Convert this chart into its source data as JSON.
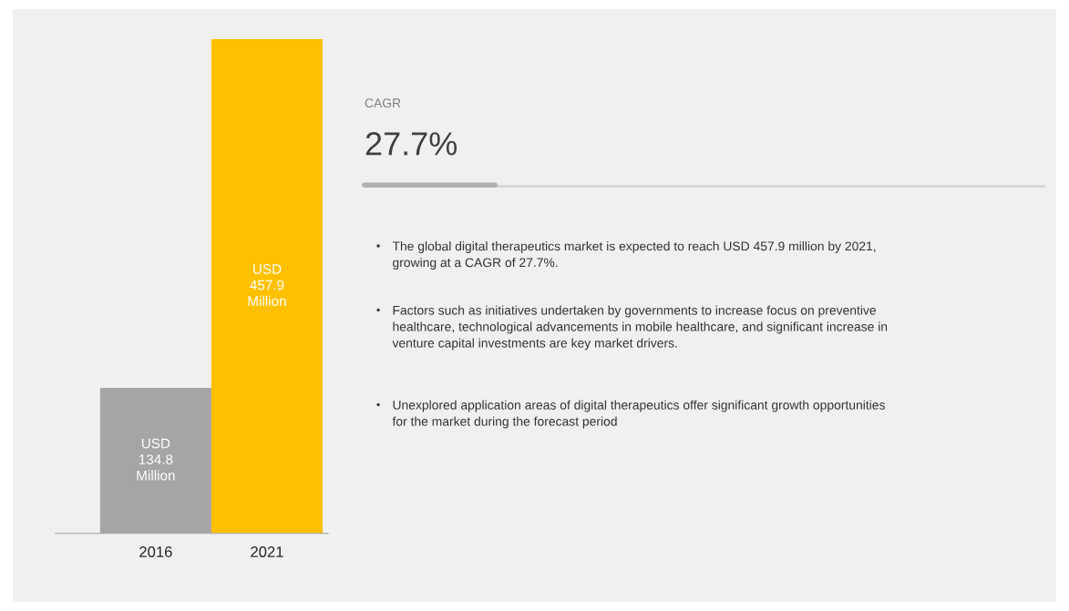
{
  "chart_data": {
    "type": "bar",
    "categories": [
      "2016",
      "2021"
    ],
    "values": [
      134.8,
      457.9
    ],
    "colors": [
      "#a5a5a5",
      "#ffc000"
    ],
    "value_labels": [
      "USD\n134.8\nMillion",
      "USD\n457.9\nMillion"
    ],
    "annotations": [
      "CAGR",
      "27.7%",
      "•\tThe global digital therapeutics market is expected to reach USD 457.9 million by 2021,\ngrowing at a CAGR of 27.7%.",
      "•\tFactors such as initiatives undertaken by governments to increase focus on preventive\nhealthcare, technological advancements in mobile healthcare, and significant increase in\nventure capital investments are key market drivers.",
      "•\tUnexplored application areas of digital therapeutics offer significant growth opportunities\nfor the market during the forecast period"
    ],
    "grid": false,
    "legend": false
  }
}
